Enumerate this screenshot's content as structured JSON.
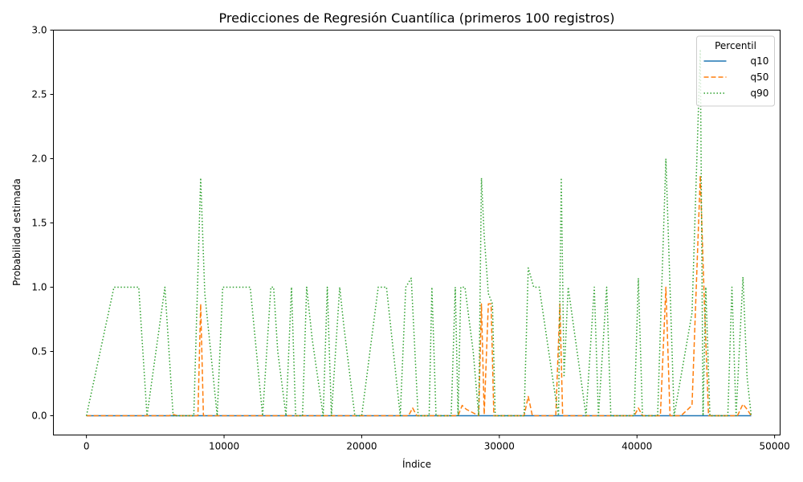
{
  "chart_data": {
    "type": "line",
    "title": "Predicciones de Regresión Cuantílica (primeros 100 registros)",
    "xlabel": "Índice",
    "ylabel": "Probabilidad estimada",
    "xlim": [
      -2400,
      50400
    ],
    "ylim": [
      -0.15,
      3.0
    ],
    "xticks": [
      0,
      10000,
      20000,
      30000,
      40000,
      50000
    ],
    "yticks": [
      0.0,
      0.5,
      1.0,
      1.5,
      2.0,
      2.5,
      3.0
    ],
    "xtick_labels": [
      "0",
      "10000",
      "20000",
      "30000",
      "40000",
      "50000"
    ],
    "ytick_labels": [
      "0.0",
      "0.5",
      "1.0",
      "1.5",
      "2.0",
      "2.5",
      "3.0"
    ],
    "grid": false,
    "legend": {
      "title": "Percentil",
      "placement": "top-right"
    },
    "series": [
      {
        "name": "q10",
        "color": "#1f77b4",
        "style": "solid",
        "x": [
          0,
          48300
        ],
        "y": [
          0,
          0
        ]
      },
      {
        "name": "q50",
        "color": "#ff7f0e",
        "style": "dashed",
        "x": [
          0,
          6000,
          6300,
          6600,
          8100,
          8300,
          8500,
          23400,
          23700,
          24000,
          27000,
          27300,
          27600,
          28500,
          28700,
          28900,
          29200,
          29400,
          29600,
          31800,
          32100,
          32400,
          34100,
          34400,
          34600,
          39800,
          40100,
          40400,
          41700,
          42100,
          42400,
          43200,
          44000,
          44600,
          44900,
          45200,
          47300,
          47700,
          48000,
          48300
        ],
        "y": [
          0,
          0,
          0.01,
          0,
          0,
          0.87,
          0,
          0,
          0.06,
          0,
          0,
          0.08,
          0.05,
          0,
          0.87,
          0.01,
          0.87,
          0.87,
          0,
          0,
          0.15,
          0,
          0,
          0.87,
          0,
          0,
          0.06,
          0,
          0,
          1.0,
          0,
          0,
          0.08,
          1.87,
          0.87,
          0,
          0,
          0.09,
          0.05,
          0
        ]
      },
      {
        "name": "q90",
        "color": "#2ca02c",
        "style": "dotted",
        "x": [
          0,
          2000,
          3800,
          4400,
          5700,
          6300,
          7800,
          8300,
          8600,
          9500,
          9900,
          11900,
          12800,
          13400,
          13600,
          13900,
          14500,
          14900,
          15200,
          15700,
          16000,
          16400,
          17200,
          17500,
          17800,
          18100,
          18400,
          18700,
          19500,
          20000,
          21200,
          21800,
          22800,
          23200,
          23600,
          24100,
          24900,
          25100,
          25400,
          26500,
          26800,
          27000,
          27200,
          27500,
          28100,
          28500,
          28700,
          28900,
          29200,
          29500,
          29700,
          31800,
          32100,
          32500,
          32900,
          34000,
          34300,
          34500,
          34700,
          35000,
          36300,
          36900,
          37200,
          37800,
          38100,
          39800,
          40100,
          40400,
          41500,
          41800,
          42100,
          42400,
          42700,
          44000,
          44600,
          44800,
          45000,
          45300,
          46600,
          46900,
          47200,
          47700,
          48000,
          48300
        ],
        "y": [
          0,
          1.0,
          1.0,
          0,
          1.0,
          0,
          0,
          1.85,
          0.95,
          0,
          1.0,
          1.0,
          0,
          1.0,
          1.0,
          0.5,
          0,
          1.0,
          0,
          0,
          1.0,
          0.6,
          0,
          1.0,
          0,
          0.5,
          1.0,
          0.7,
          0,
          0,
          1.0,
          1.0,
          0,
          1.0,
          1.07,
          0,
          0,
          1.0,
          0,
          0,
          1.0,
          0,
          1.0,
          1.0,
          0.5,
          0,
          1.85,
          1.4,
          0.95,
          0.87,
          0,
          0,
          1.15,
          1.0,
          1.0,
          0.2,
          0,
          1.85,
          0.3,
          1.0,
          0,
          1.0,
          0,
          1.0,
          0,
          0,
          1.07,
          0,
          0,
          1.0,
          2.0,
          1.0,
          0,
          0.8,
          2.85,
          0,
          1.0,
          0,
          0,
          1.0,
          0,
          1.08,
          0.3,
          0
        ]
      }
    ]
  }
}
